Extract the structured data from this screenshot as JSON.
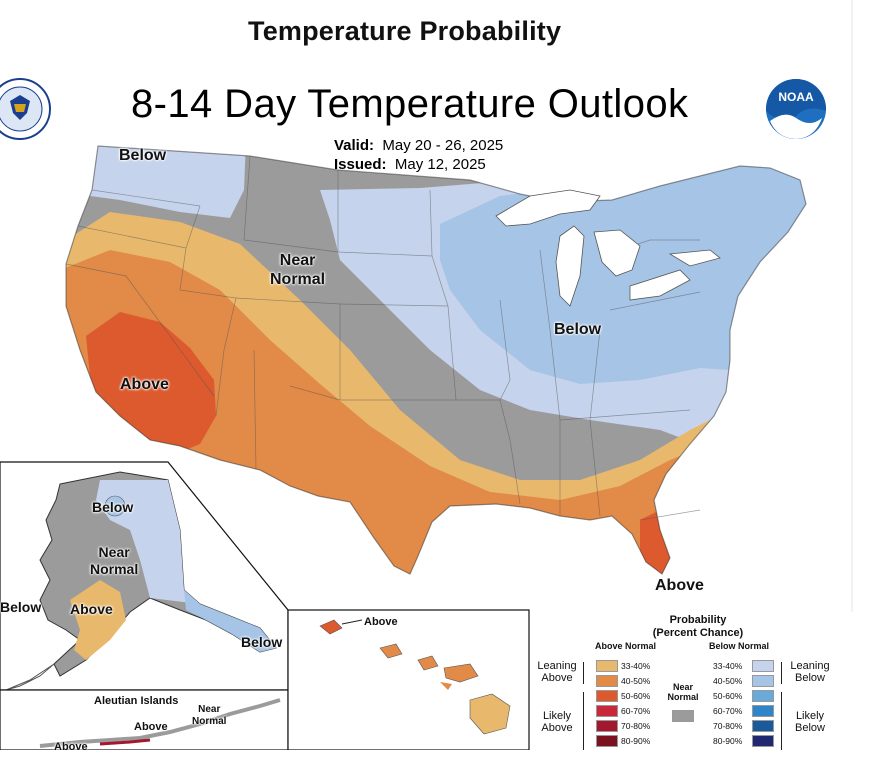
{
  "header": {
    "main_title": "Temperature Probability",
    "map_title": "8-14 Day Temperature Outlook",
    "valid_label": "Valid:",
    "valid_value": "May 20 - 26, 2025",
    "issued_label": "Issued:",
    "issued_value": "May 12, 2025"
  },
  "logos": {
    "left": "doc-seal",
    "right": "noaa-logo",
    "noaa_text": "NOAA"
  },
  "colors": {
    "near_normal": "#9b9b9b",
    "above_33_40": "#e8b96c",
    "above_40_50": "#e28a48",
    "above_50_60": "#dc5a2e",
    "above_60_70": "#c8283a",
    "above_70_80": "#a3182c",
    "above_80_90": "#7a1220",
    "below_33_40": "#c6d3ec",
    "below_40_50": "#a6c4e6",
    "below_50_60": "#6aaad9",
    "below_60_70": "#2e86c9",
    "below_70_80": "#1a5a9c",
    "below_80_90": "#1f2870"
  },
  "map_labels": {
    "nw_below": "Below",
    "near_normal_line1": "Near",
    "near_normal_line2": "Normal",
    "sw_above": "Above",
    "ne_below": "Below",
    "fl_above": "Above",
    "ak_below_north": "Below",
    "ak_near_line1": "Near",
    "ak_near_line2": "Normal",
    "ak_above": "Above",
    "ak_below_west": "Below",
    "ak_below_se": "Below",
    "hi_above": "Above",
    "aleutian_title": "Aleutian Islands",
    "aleutian_above": "Above",
    "aleutian_near_line1": "Near",
    "aleutian_near_line2": "Normal",
    "aleutian_above2": "Above"
  },
  "legend": {
    "title_line1": "Probability",
    "title_line2": "(Percent Chance)",
    "above_header": "Above Normal",
    "below_header": "Below Normal",
    "near_label_line1": "Near",
    "near_label_line2": "Normal",
    "leaning_above_line1": "Leaning",
    "leaning_above_line2": "Above",
    "likely_above_line1": "Likely",
    "likely_above_line2": "Above",
    "leaning_below_line1": "Leaning",
    "leaning_below_line2": "Below",
    "likely_below_line1": "Likely",
    "likely_below_line2": "Below",
    "above_ranges": [
      "33-40%",
      "40-50%",
      "50-60%",
      "60-70%",
      "70-80%",
      "80-90%"
    ],
    "below_ranges": [
      "33-40%",
      "40-50%",
      "50-60%",
      "60-70%",
      "70-80%",
      "80-90%"
    ]
  }
}
